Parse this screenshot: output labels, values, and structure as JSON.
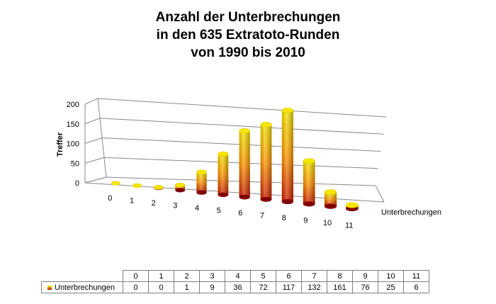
{
  "chart_data": {
    "type": "bar",
    "title_lines": [
      "Anzahl der Unterbrechungen",
      "in den 635 Extratoto-Runden",
      "von 1990 bis 2010"
    ],
    "xlabel": "Unterbrechungen",
    "ylabel": "Treffer",
    "ylim": [
      0,
      200
    ],
    "yticks": [
      "0",
      "50",
      "100",
      "150",
      "200"
    ],
    "categories": [
      "0",
      "1",
      "2",
      "3",
      "4",
      "5",
      "6",
      "7",
      "8",
      "9",
      "10",
      "11"
    ],
    "series": [
      {
        "name": "Unterbrechungen",
        "values": [
          0,
          0,
          1,
          9,
          36,
          72,
          117,
          132,
          161,
          76,
          25,
          6
        ]
      }
    ],
    "colors": {
      "bar_top": "#f5e600",
      "bar_mid": "#ff9900",
      "bar_bottom": "#cc1a00",
      "bar_base": "#800000",
      "grid": "#888888"
    },
    "grid": true,
    "style": "3d-cylinder"
  }
}
